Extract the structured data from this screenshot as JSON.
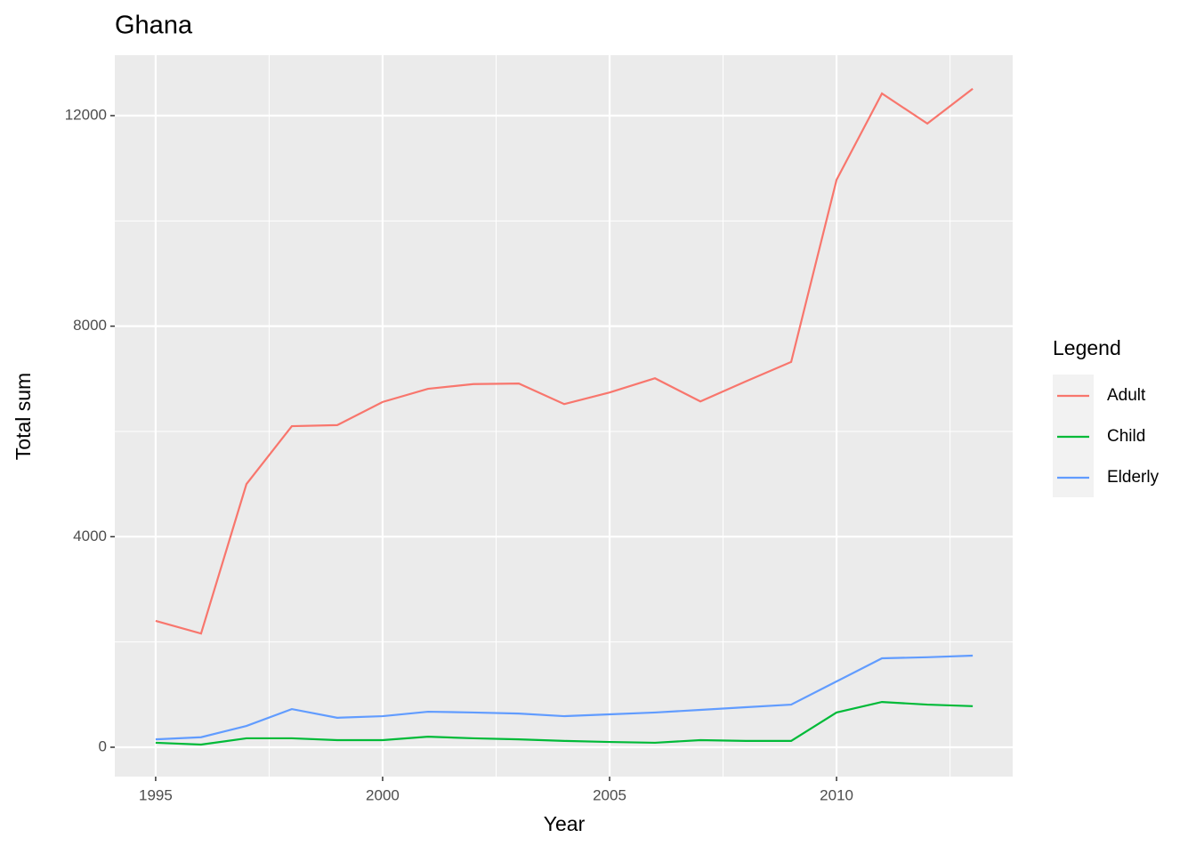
{
  "chart_data": {
    "type": "line",
    "title": "Ghana",
    "xlabel": "Year",
    "ylabel": "Total sum",
    "x": [
      1995,
      1996,
      1997,
      1998,
      1999,
      2000,
      2001,
      2002,
      2003,
      2004,
      2005,
      2006,
      2007,
      2008,
      2009,
      2010,
      2011,
      2012,
      2013
    ],
    "series": [
      {
        "name": "Adult",
        "color": "#f8766d",
        "values": [
          2400,
          2160,
          5000,
          6100,
          6120,
          6560,
          6810,
          6900,
          6910,
          6520,
          6740,
          7010,
          6570,
          6950,
          7320,
          10780,
          12420,
          11850,
          12510
        ]
      },
      {
        "name": "Child",
        "color": "#00ba38",
        "values": [
          85,
          50,
          170,
          170,
          135,
          135,
          200,
          170,
          150,
          120,
          100,
          85,
          135,
          120,
          120,
          660,
          860,
          810,
          780
        ]
      },
      {
        "name": "Elderly",
        "color": "#619cff",
        "values": [
          150,
          190,
          405,
          725,
          560,
          590,
          675,
          660,
          640,
          590,
          625,
          660,
          710,
          760,
          810,
          1250,
          1690,
          1710,
          1740
        ]
      }
    ],
    "xlim": [
      1994.1,
      2013.88
    ],
    "xticks": [
      1995,
      2000,
      2005,
      2010
    ],
    "ylim": [
      -558,
      13149
    ],
    "yticks": [
      0,
      4000,
      8000,
      12000
    ],
    "grid": true,
    "legend_title": "Legend",
    "legend": "right"
  }
}
